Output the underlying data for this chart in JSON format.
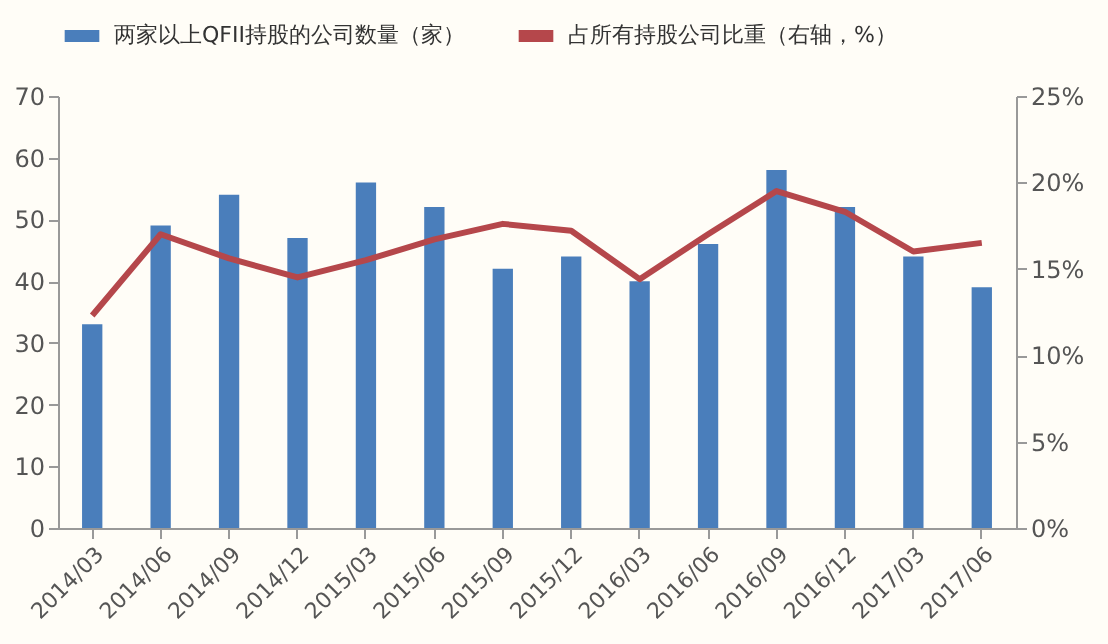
{
  "chart_data": {
    "type": "bar",
    "categories": [
      "2014/03",
      "2014/06",
      "2014/09",
      "2014/12",
      "2015/03",
      "2015/06",
      "2015/09",
      "2015/12",
      "2016/03",
      "2016/06",
      "2016/09",
      "2016/12",
      "2017/03",
      "2017/06"
    ],
    "series": [
      {
        "name": "两家以上QFII持股的公司数量（家）",
        "color": "#4a7ebb",
        "values": [
          33,
          49,
          54,
          47,
          56,
          52,
          42,
          44,
          40,
          46,
          58,
          52,
          44,
          39
        ]
      },
      {
        "name": "占所有持股公司比重（右轴，%）",
        "type": "line",
        "axis": "y2",
        "color": "#b5474b",
        "values": [
          12.3,
          17.0,
          15.6,
          14.5,
          15.5,
          16.7,
          17.6,
          17.2,
          14.4,
          17.0,
          19.5,
          18.3,
          16.0,
          16.5
        ]
      }
    ],
    "ylim": [
      0,
      70
    ],
    "yticks": [
      0,
      10,
      20,
      30,
      40,
      50,
      60,
      70
    ],
    "y2lim": [
      0,
      25
    ],
    "y2ticks": [
      {
        "value": 0,
        "label": "0%"
      },
      {
        "value": 5,
        "label": "5%"
      },
      {
        "value": 10,
        "label": "10%"
      },
      {
        "value": 15,
        "label": "15%"
      },
      {
        "value": 20,
        "label": "20%"
      },
      {
        "value": 25,
        "label": "25%"
      }
    ],
    "legend": "top",
    "grid": false,
    "marker": "none",
    "line_style": "solid"
  }
}
